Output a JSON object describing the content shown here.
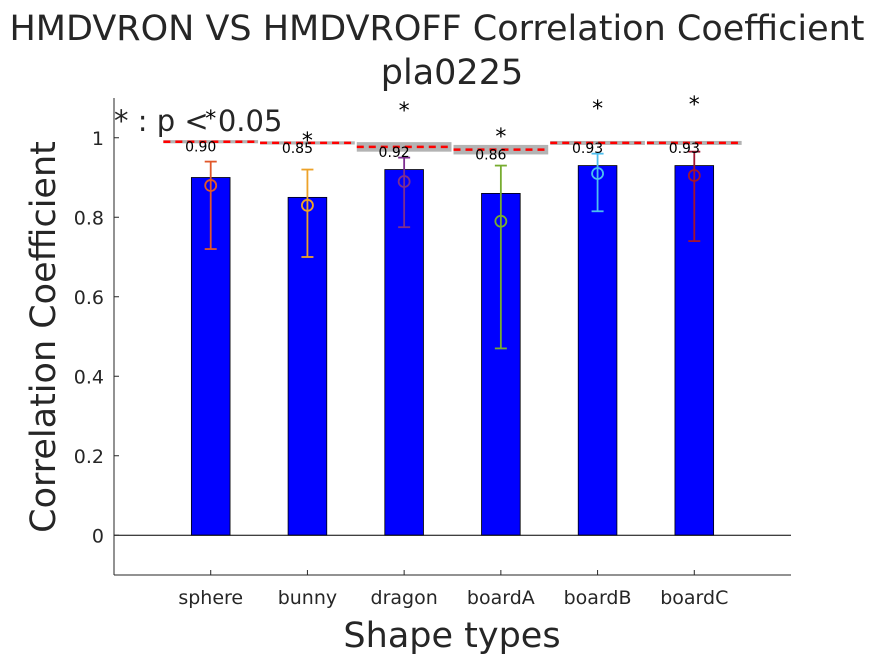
{
  "chart_data": {
    "type": "bar",
    "title": "HMDVRON VS HMDVROFF Correlation Coefficient",
    "subtitle": "pla0225",
    "xlabel": "Shape types",
    "ylabel": "Correlation Coefficient",
    "ylim": [
      -0.1,
      1.1
    ],
    "yticks": [
      0,
      0.2,
      0.4,
      0.6,
      0.8,
      1
    ],
    "ytick_labels": [
      "0",
      "0.2",
      "0.4",
      "0.6",
      "0.8",
      "1"
    ],
    "categories": [
      "sphere",
      "bunny",
      "dragon",
      "boardA",
      "boardB",
      "boardC"
    ],
    "values": [
      0.9,
      0.85,
      0.92,
      0.86,
      0.93,
      0.93
    ],
    "value_labels": [
      "0.90",
      "0.85",
      "0.92",
      "0.86",
      "0.93",
      "0.93"
    ],
    "bar_color": "#0000ff",
    "points": {
      "values": [
        0.88,
        0.83,
        0.89,
        0.79,
        0.91,
        0.905
      ],
      "lower": [
        0.72,
        0.7,
        0.775,
        0.47,
        0.815,
        0.74
      ],
      "upper": [
        0.94,
        0.92,
        0.95,
        0.93,
        0.96,
        0.965
      ],
      "colors": [
        "#e0572a",
        "#eda228",
        "#7d2e8e",
        "#77ac30",
        "#4dbeee",
        "#a2142f"
      ]
    },
    "threshold": {
      "values": [
        0.99,
        0.987,
        0.977,
        0.97,
        0.987,
        0.987
      ],
      "band_width": [
        0.004,
        0.004,
        0.012,
        0.012,
        0.005,
        0.005
      ],
      "line_color": "#ff0000",
      "band_color": "#b3b3b3"
    },
    "significance": {
      "marker": "*",
      "flags": [
        true,
        true,
        true,
        true,
        true,
        true
      ],
      "y": [
        1.055,
        1.0,
        1.075,
        1.01,
        1.08,
        1.09
      ],
      "legend": "* : p < 0.05"
    },
    "grid": false
  }
}
